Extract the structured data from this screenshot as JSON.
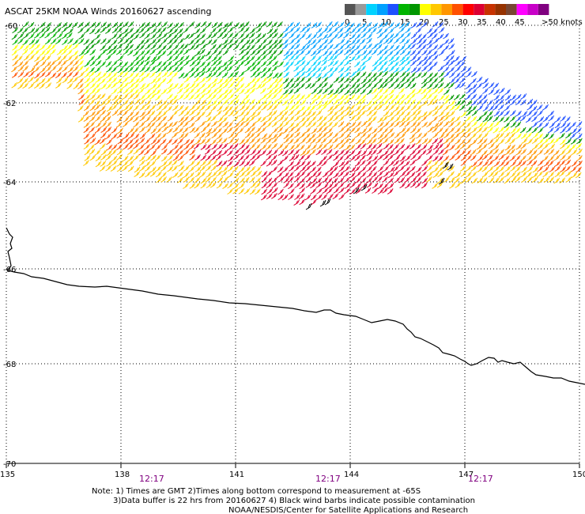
{
  "title": "ASCAT 25KM NOAA Winds 20160627 ascending",
  "legend": {
    "colors": [
      "#555555",
      "#999999",
      "#00d2ff",
      "#00a0ff",
      "#1e50ff",
      "#00b400",
      "#009600",
      "#ffff00",
      "#ffc800",
      "#ff9600",
      "#ff5000",
      "#ff0000",
      "#dc0032",
      "#c83200",
      "#963200",
      "#784632",
      "#ff00ff",
      "#c800c8",
      "#800080"
    ],
    "ticks": [
      "0",
      "5",
      "10",
      "15",
      "20",
      "25",
      "30",
      "35",
      "40",
      "45",
      ">50 knots"
    ],
    "unit": "knots"
  },
  "lat_labels": [
    "-60",
    "-62",
    "-64",
    "-66",
    "-68",
    "-70"
  ],
  "lon_labels": [
    "135",
    "138",
    "141",
    "144",
    "147",
    "150"
  ],
  "time_labels": [
    "12:17",
    "12:17",
    "12:17"
  ],
  "notes": [
    "Note: 1) Times are GMT 2)Times along bottom correspond to measurement at -65S",
    "3)Data buffer is 22 hrs from 20160627 4) Black wind barbs indicate possible contamination",
    "NOAA/NESDIS/Center for Satellite Applications and Research"
  ]
}
